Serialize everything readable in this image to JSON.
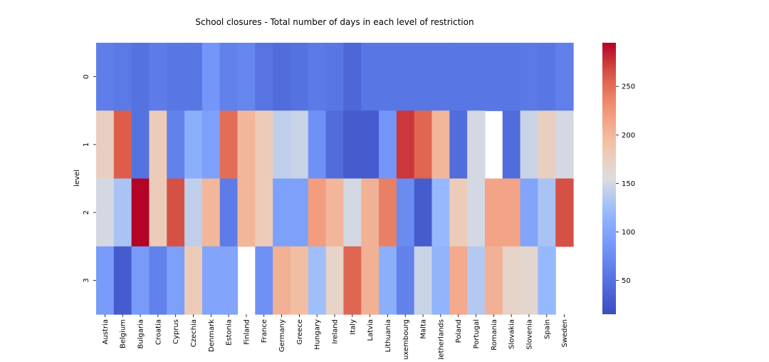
{
  "chart_data": {
    "type": "heatmap",
    "title": "School closures - Total number of days in each level of restriction",
    "xlabel": "",
    "ylabel": "level",
    "colormap": "coolwarm",
    "colorbar": {
      "min": 15,
      "max": 295,
      "ticks": [
        50,
        100,
        150,
        200,
        250
      ]
    },
    "rows": [
      "0",
      "1",
      "2",
      "3"
    ],
    "columns": [
      "Austria",
      "Belgium",
      "Bulgaria",
      "Croatia",
      "Cyprus",
      "Czechia",
      "Denmark",
      "Estonia",
      "Finland",
      "France",
      "Germany",
      "Greece",
      "Hungary",
      "Ireland",
      "Italy",
      "Latvia",
      "Lithuania",
      "Luxembourg",
      "Malta",
      "Netherlands",
      "Poland",
      "Portugal",
      "Romania",
      "Slovakia",
      "Slovenia",
      "Spain",
      "Sweden"
    ],
    "values": [
      [
        62,
        58,
        50,
        60,
        55,
        55,
        85,
        65,
        70,
        52,
        45,
        50,
        58,
        55,
        40,
        55,
        55,
        55,
        55,
        55,
        55,
        55,
        55,
        55,
        58,
        55,
        63
      ],
      [
        175,
        260,
        50,
        180,
        65,
        110,
        95,
        250,
        200,
        180,
        140,
        145,
        80,
        45,
        30,
        30,
        85,
        275,
        255,
        200,
        45,
        150,
        null,
        45,
        145,
        175,
        150
      ],
      [
        150,
        130,
        295,
        180,
        265,
        140,
        200,
        60,
        200,
        180,
        95,
        95,
        220,
        200,
        150,
        205,
        240,
        75,
        30,
        120,
        180,
        150,
        215,
        215,
        100,
        130,
        265
      ],
      [
        90,
        30,
        90,
        65,
        95,
        180,
        100,
        100,
        null,
        80,
        205,
        195,
        125,
        170,
        255,
        205,
        110,
        65,
        145,
        115,
        210,
        135,
        205,
        170,
        165,
        120,
        null
      ]
    ]
  }
}
